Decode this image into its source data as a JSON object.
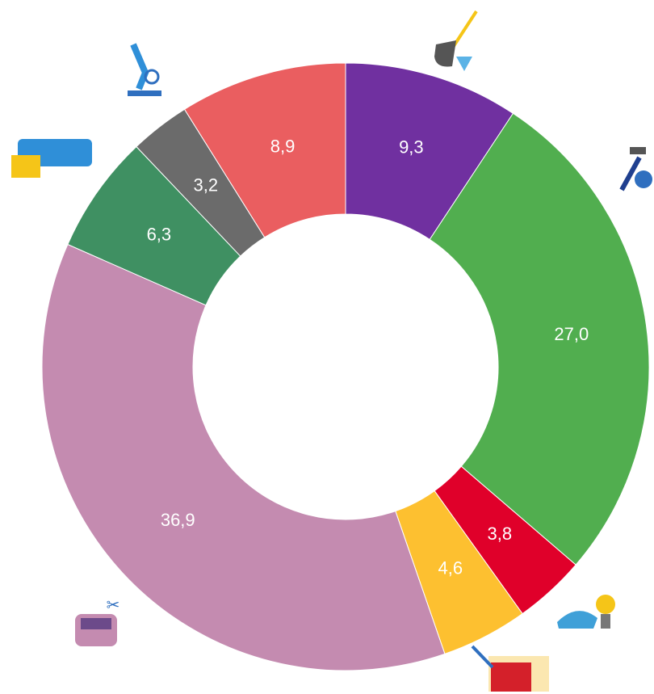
{
  "chart_data": {
    "type": "donut",
    "values": [
      9.3,
      27.0,
      3.8,
      4.6,
      36.9,
      6.3,
      3.2,
      8.9
    ],
    "value_labels": [
      "9,3",
      "27,0",
      "3,8",
      "4,6",
      "36,9",
      "6,3",
      "3,2",
      "8,9"
    ],
    "colors": [
      "#7030a0",
      "#51ae4f",
      "#e0002a",
      "#fdc030",
      "#c48bb0",
      "#3f9062",
      "#6b6b6b",
      "#ea5e60"
    ]
  }
}
